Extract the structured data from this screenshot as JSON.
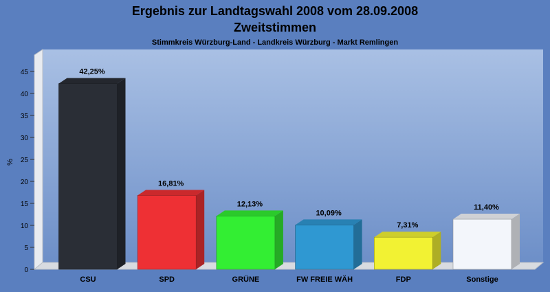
{
  "chart_data": {
    "type": "bar",
    "title": "Ergebnis zur Landtagswahl 2008 vom 28.09.2008",
    "title_line2": "Zweitstimmen",
    "subtitle": "Stimmkreis Würzburg-Land - Landkreis Würzburg - Markt Remlingen",
    "xlabel": "",
    "ylabel": "%",
    "ylim": [
      0,
      45
    ],
    "yticks": [
      0,
      5,
      10,
      15,
      20,
      25,
      30,
      35,
      40,
      45
    ],
    "grid": false,
    "categories": [
      "CSU",
      "SPD",
      "GRÜNE",
      "FW FREIE WÄH",
      "FDP",
      "Sonstige"
    ],
    "values": [
      42.25,
      16.81,
      12.13,
      10.09,
      7.31,
      11.4
    ],
    "value_labels": [
      "42,25%",
      "16,81%",
      "12,13%",
      "10,09%",
      "7,31%",
      "11,40%"
    ],
    "colors": [
      "#2a2e36",
      "#ee3034",
      "#33ee33",
      "#2f98d2",
      "#f2f233",
      "#f3f6fb"
    ]
  },
  "colors": {
    "background": "#5a7fbf",
    "plot_top": "#a9c0e4",
    "plot_bottom": "#6d8fc8",
    "wall": "#e8ebf0",
    "floor": "#d8dbe0",
    "text": "#000000"
  }
}
